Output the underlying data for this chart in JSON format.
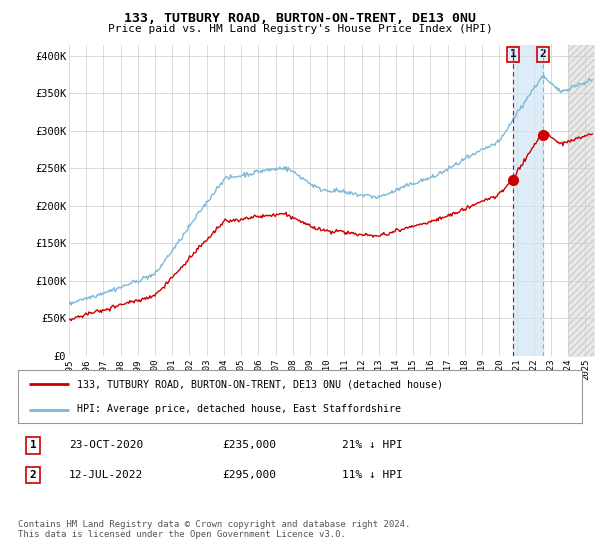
{
  "title": "133, TUTBURY ROAD, BURTON-ON-TRENT, DE13 0NU",
  "subtitle": "Price paid vs. HM Land Registry's House Price Index (HPI)",
  "ylabel_ticks": [
    "£0",
    "£50K",
    "£100K",
    "£150K",
    "£200K",
    "£250K",
    "£300K",
    "£350K",
    "£400K"
  ],
  "ytick_values": [
    0,
    50000,
    100000,
    150000,
    200000,
    250000,
    300000,
    350000,
    400000
  ],
  "ylim": [
    0,
    415000
  ],
  "xlim_start": 1995.0,
  "xlim_end": 2025.5,
  "hpi_color": "#7db8d8",
  "price_color": "#cc0000",
  "marker1_date": 2020.81,
  "marker1_price": 235000,
  "marker2_date": 2022.54,
  "marker2_price": 295000,
  "legend_line1": "133, TUTBURY ROAD, BURTON-ON-TRENT, DE13 0NU (detached house)",
  "legend_line2": "HPI: Average price, detached house, East Staffordshire",
  "table_row1": [
    "1",
    "23-OCT-2020",
    "£235,000",
    "21% ↓ HPI"
  ],
  "table_row2": [
    "2",
    "12-JUL-2022",
    "£295,000",
    "11% ↓ HPI"
  ],
  "footnote": "Contains HM Land Registry data © Crown copyright and database right 2024.\nThis data is licensed under the Open Government Licence v3.0.",
  "background_color": "#ffffff",
  "plot_bg_color": "#ffffff",
  "grid_color": "#cccccc",
  "xtick_years": [
    1995,
    1996,
    1997,
    1998,
    1999,
    2000,
    2001,
    2002,
    2003,
    2004,
    2005,
    2006,
    2007,
    2008,
    2009,
    2010,
    2011,
    2012,
    2013,
    2014,
    2015,
    2016,
    2017,
    2018,
    2019,
    2020,
    2021,
    2022,
    2023,
    2024,
    2025
  ],
  "shade_color": "#d0e4f5",
  "hatch_color": "#dddddd",
  "future_start": 2024.0
}
